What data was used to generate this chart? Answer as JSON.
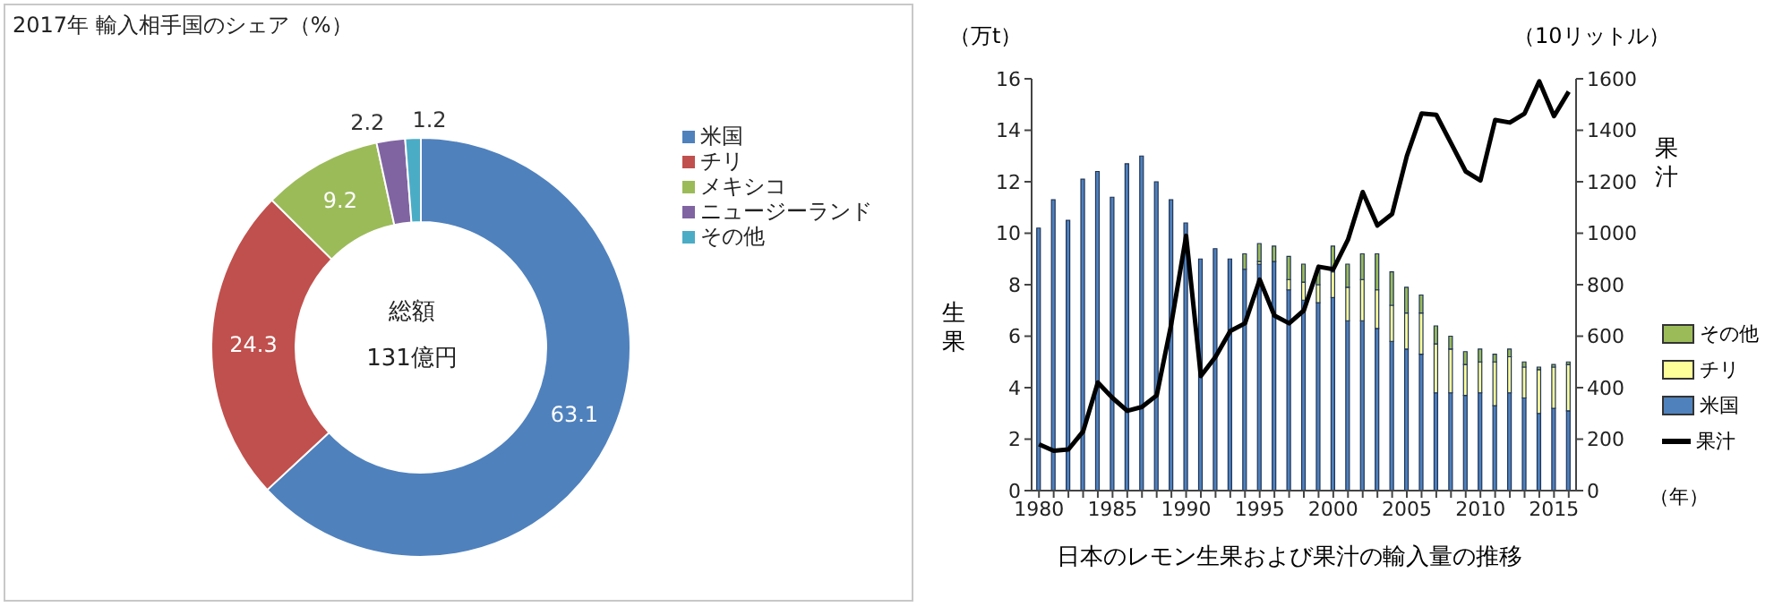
{
  "chart_data": [
    {
      "type": "donut",
      "title": "2017年 輸入相手国のシェア（%）",
      "categories": [
        "米国",
        "チリ",
        "メキシコ",
        "ニュージーランド",
        "その他"
      ],
      "values": [
        63.1,
        24.3,
        9.2,
        2.2,
        1.2
      ],
      "colors": [
        "#4f81bd",
        "#c0504d",
        "#9bbb59",
        "#8064a2",
        "#4bacc6"
      ],
      "data_labels": true,
      "legend": "right",
      "annotations": [
        "総額",
        "131億円"
      ]
    },
    {
      "type": "bar",
      "title": "日本のレモン生果および果汁の輸入量の推移",
      "xlabel": "（年）",
      "ylabel": "生果",
      "y2label": "果汁",
      "annotations": [
        "（万t）",
        "（10リットル）"
      ],
      "stacked": true,
      "legend": "right",
      "categories": [
        "1980",
        null,
        null,
        null,
        null,
        "1985",
        null,
        null,
        null,
        null,
        "1990",
        null,
        null,
        null,
        null,
        "1995",
        null,
        null,
        null,
        null,
        "2000",
        null,
        null,
        null,
        null,
        "2005",
        null,
        null,
        null,
        null,
        "2010",
        null,
        null,
        null,
        null,
        "2015",
        null
      ],
      "ylim": [
        0,
        16
      ],
      "yticks": [
        0,
        2,
        4,
        6,
        8,
        10,
        12,
        14,
        16
      ],
      "y2lim": [
        0,
        1600
      ],
      "y2ticks": [
        0,
        200,
        400,
        600,
        800,
        1000,
        1200,
        1400,
        1600
      ],
      "series": [
        {
          "name": "米国",
          "type": "bar",
          "color": "#4f81bd",
          "values": [
            10.2,
            11.3,
            10.5,
            12.1,
            12.4,
            11.4,
            12.7,
            13.0,
            12.0,
            11.3,
            10.4,
            9.0,
            9.4,
            9.0,
            8.6,
            8.8,
            8.9,
            7.8,
            7.4,
            7.3,
            7.5,
            6.6,
            6.6,
            6.3,
            5.8,
            5.5,
            5.3,
            3.8,
            3.8,
            3.7,
            3.8,
            3.3,
            3.8,
            3.6,
            3.0,
            3.2,
            3.1
          ]
        },
        {
          "name": "チリ",
          "type": "bar",
          "color": "#ffff99",
          "values": [
            0,
            0,
            0,
            0,
            0,
            0,
            0,
            0,
            0,
            0,
            0,
            0,
            0,
            0,
            0,
            0.1,
            0,
            0.4,
            0.7,
            0.7,
            1.0,
            1.3,
            1.6,
            1.5,
            1.4,
            1.4,
            1.6,
            1.9,
            1.7,
            1.2,
            1.2,
            1.7,
            1.4,
            1.2,
            1.7,
            1.6,
            1.8
          ]
        },
        {
          "name": "その他",
          "type": "bar",
          "color": "#9bbb59",
          "values": [
            0,
            0,
            0,
            0,
            0,
            0,
            0,
            0,
            0,
            0,
            0,
            0,
            0,
            0,
            0.6,
            0.7,
            0.6,
            0.9,
            0.7,
            0.6,
            1.0,
            0.9,
            1.0,
            1.4,
            1.3,
            1.0,
            0.7,
            0.7,
            0.5,
            0.5,
            0.5,
            0.3,
            0.3,
            0.2,
            0.1,
            0.1,
            0.1
          ]
        },
        {
          "name": "果汁",
          "type": "line",
          "axis": "y2",
          "color": "#000000",
          "values": [
            180,
            155,
            160,
            230,
            420,
            360,
            310,
            325,
            370,
            650,
            990,
            445,
            520,
            620,
            650,
            820,
            680,
            650,
            700,
            870,
            860,
            975,
            1160,
            1030,
            1075,
            1300,
            1465,
            1460,
            1350,
            1240,
            1205,
            1440,
            1430,
            1465,
            1590,
            1455,
            1550
          ]
        }
      ]
    }
  ]
}
